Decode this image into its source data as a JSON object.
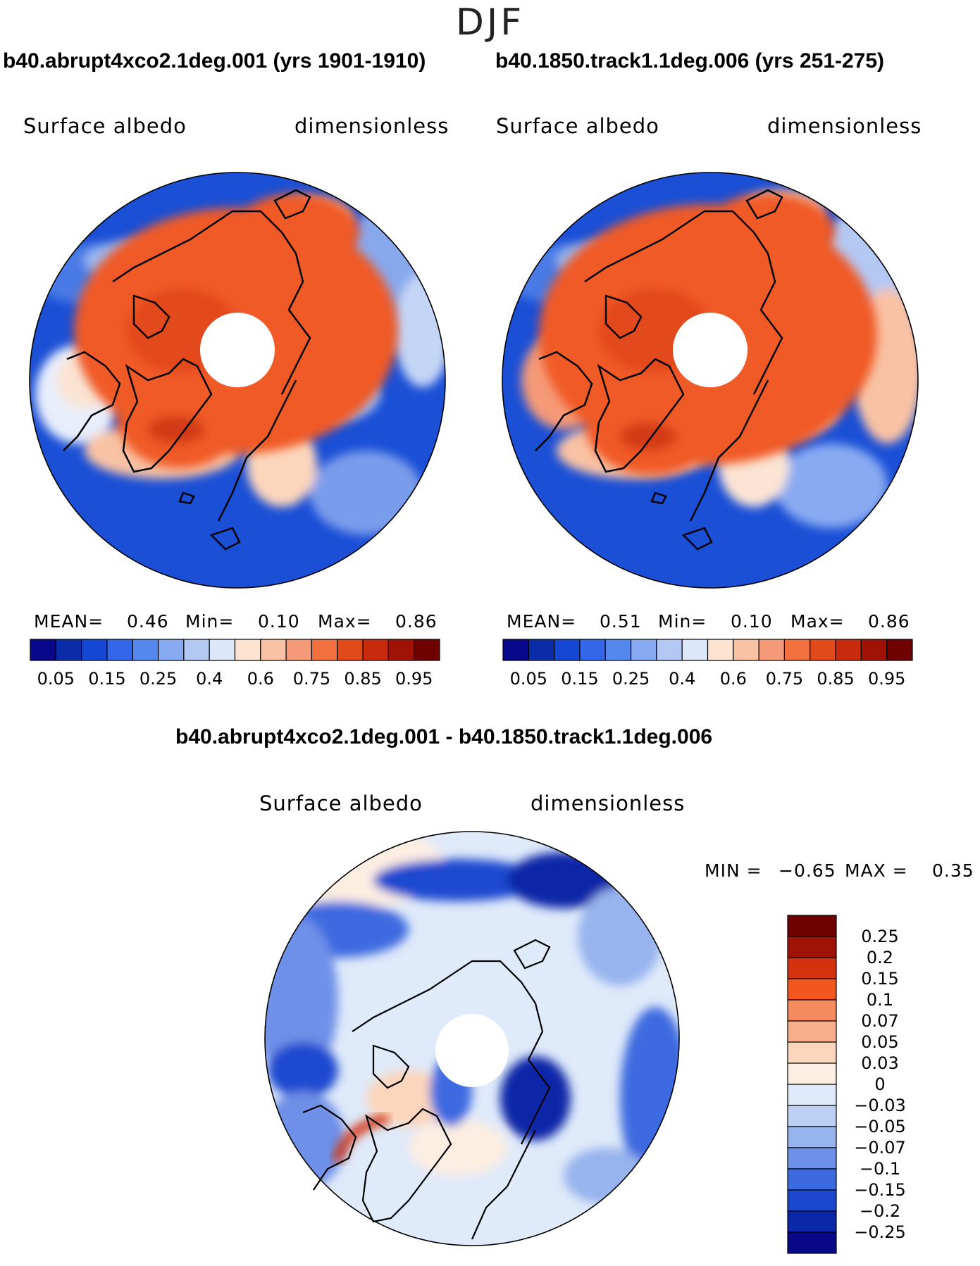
{
  "season": "DJF",
  "panels": [
    {
      "title": "b40.abrupt4xco2.1deg.001 (yrs 1901-1910)",
      "variable": "Surface albedo",
      "units": "dimensionless",
      "stats": {
        "mean_label": "MEAN=",
        "mean": "0.46",
        "min_label": "Min=",
        "min": "0.10",
        "max_label": "Max=",
        "max": "0.86"
      }
    },
    {
      "title": "b40.1850.track1.1deg.006 (yrs 251-275)",
      "variable": "Surface albedo",
      "units": "dimensionless",
      "stats": {
        "mean_label": "MEAN=",
        "mean": "0.51",
        "min_label": "Min=",
        "min": "0.10",
        "max_label": "Max=",
        "max": "0.86"
      }
    }
  ],
  "abs_colorbar": {
    "colors": [
      "#08088c",
      "#0a2ca8",
      "#1448d4",
      "#3366e8",
      "#5588ee",
      "#88aaf2",
      "#b4c8f4",
      "#dce8fa",
      "#fde4d2",
      "#f9c2a4",
      "#f59a78",
      "#f2703e",
      "#e24a1c",
      "#c82a0c",
      "#a01206",
      "#6e0000"
    ],
    "labels": [
      "0.05",
      "0.15",
      "0.25",
      "0.4",
      "0.6",
      "0.75",
      "0.85",
      "0.95"
    ]
  },
  "diff_panel": {
    "title": "b40.abrupt4xco2.1deg.001 - b40.1850.track1.1deg.006",
    "variable": "Surface albedo",
    "units": "dimensionless",
    "min_label": "MIN =",
    "min": "−0.65",
    "max_label": "MAX =",
    "max": "0.35"
  },
  "diff_colorbar": {
    "colors": [
      "#6e0000",
      "#a01206",
      "#d2320e",
      "#f2581e",
      "#f58a5e",
      "#f8ae8a",
      "#fcd6bc",
      "#fdeee2",
      "#dfeafa",
      "#bcd0f4",
      "#98b4ee",
      "#6e90e8",
      "#3e6ae0",
      "#1c48d0",
      "#0a28a8",
      "#080888"
    ],
    "labels": [
      "0.25",
      "0.2",
      "0.15",
      "0.1",
      "0.07",
      "0.05",
      "0.03",
      "0",
      "−0.03",
      "−0.05",
      "−0.07",
      "−0.1",
      "−0.15",
      "−0.2",
      "−0.25"
    ]
  }
}
